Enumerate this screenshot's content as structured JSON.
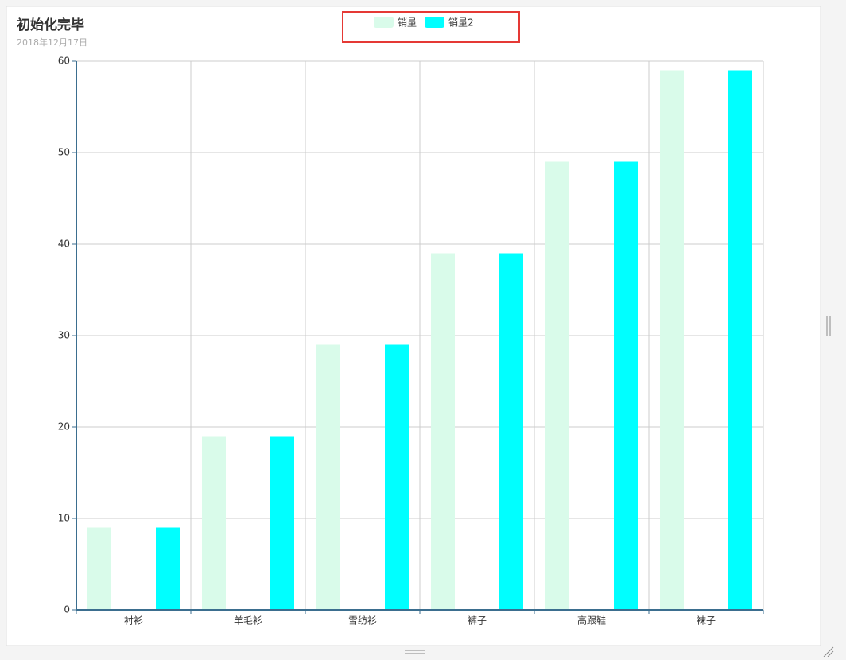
{
  "chart_data": {
    "type": "bar",
    "title": "初始化完毕",
    "subtitle": "2018年12月17日",
    "categories": [
      "衬衫",
      "羊毛衫",
      "雪纺衫",
      "裤子",
      "高跟鞋",
      "袜子"
    ],
    "series": [
      {
        "name": "销量",
        "color": "#d9fbea",
        "values": [
          9,
          19,
          29,
          39,
          49,
          59
        ]
      },
      {
        "name": "销量2",
        "color": "#00ffff",
        "values": [
          9,
          19,
          29,
          39,
          49,
          59
        ]
      }
    ],
    "ylim": [
      0,
      60
    ],
    "yticks": [
      0,
      10,
      20,
      30,
      40,
      50,
      60
    ],
    "grid": true
  }
}
